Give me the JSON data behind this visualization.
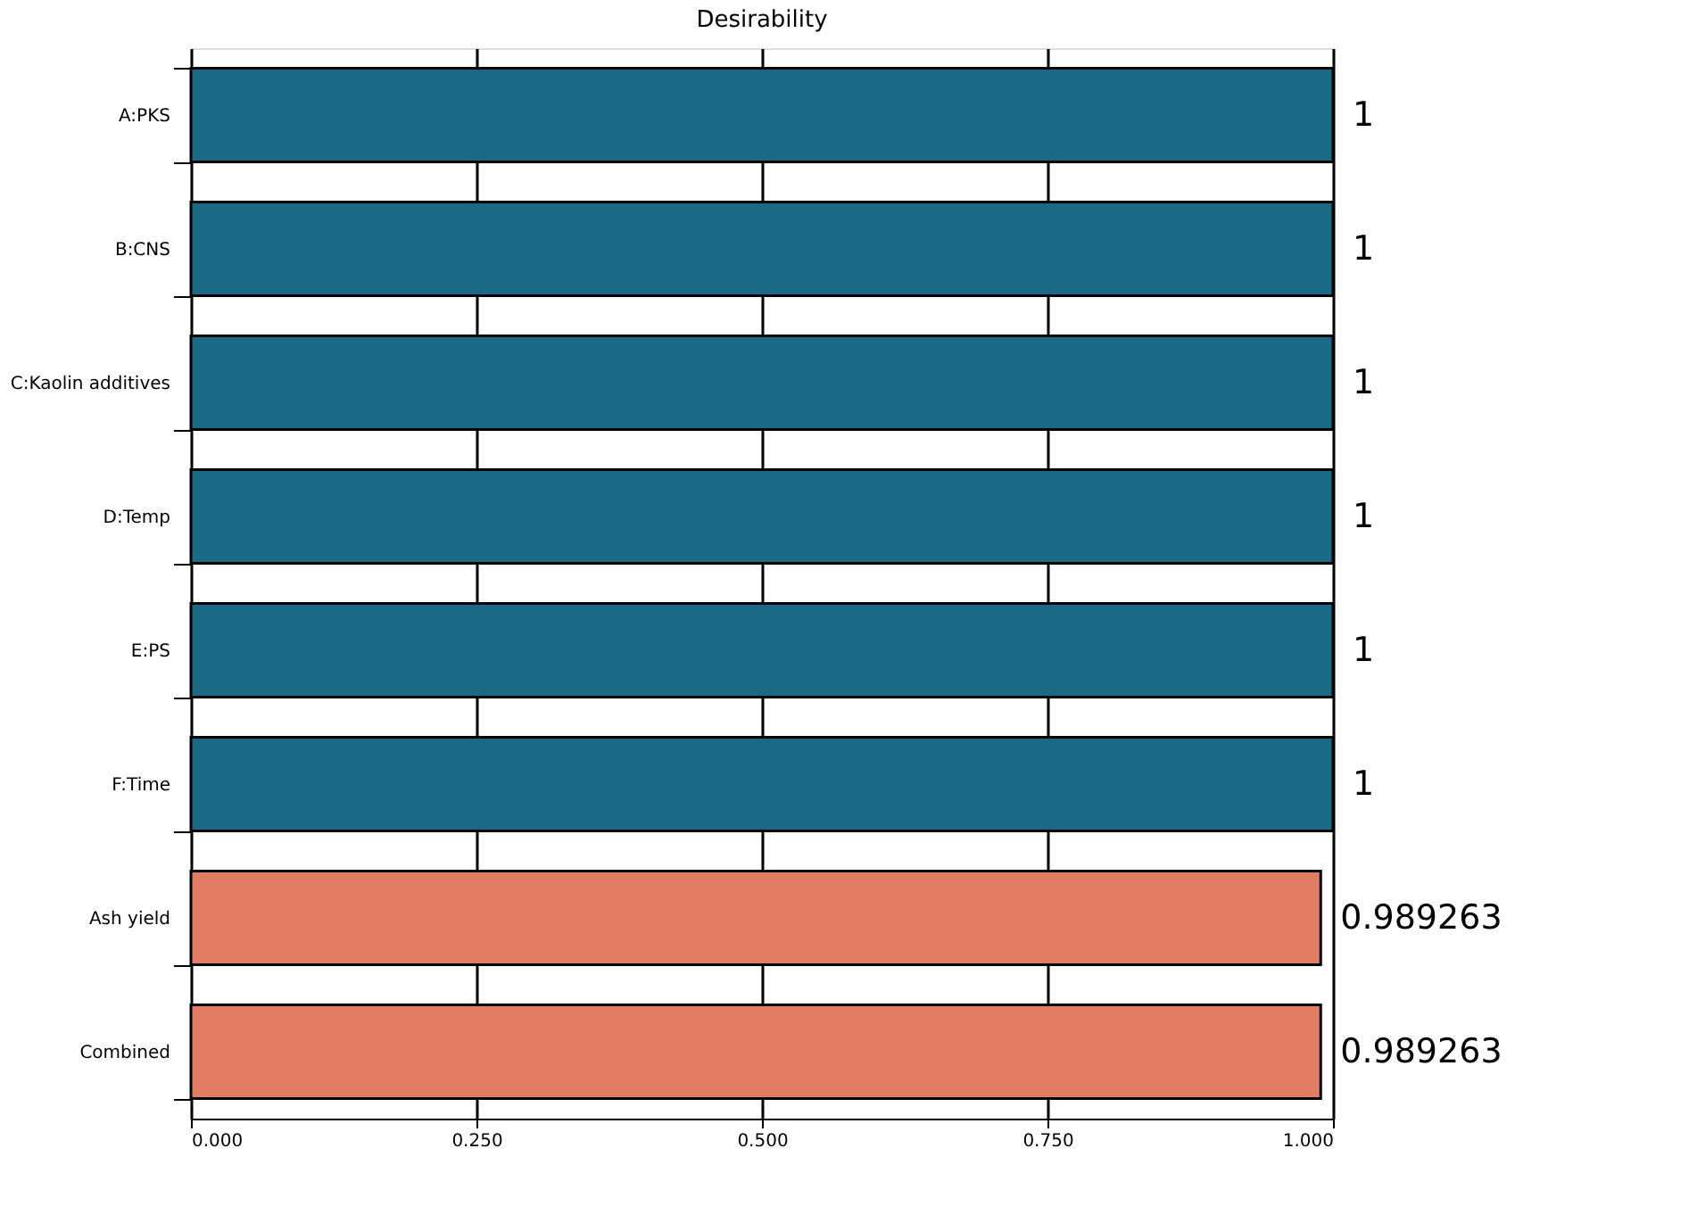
{
  "chart_data": {
    "type": "bar",
    "orientation": "horizontal",
    "title": "Desirability",
    "categories": [
      "A:PKS",
      "B:CNS",
      "C:Kaolin additives",
      "D:Temp",
      "E:PS",
      "F:Time",
      "Ash yield",
      "Combined"
    ],
    "values": [
      1,
      1,
      1,
      1,
      1,
      1,
      0.989263,
      0.989263
    ],
    "colors": [
      "#1b6a85",
      "#1b6a85",
      "#1b6a85",
      "#1b6a85",
      "#1b6a85",
      "#1b6a85",
      "#e27c62",
      "#e27c62"
    ],
    "xlim": [
      0,
      1
    ],
    "xticks": [
      {
        "value": 0,
        "label": "0.000"
      },
      {
        "value": 0.25,
        "label": "0.250"
      },
      {
        "value": 0.5,
        "label": "0.500"
      },
      {
        "value": 0.75,
        "label": "0.750"
      },
      {
        "value": 1,
        "label": "1.000"
      }
    ],
    "data_labels": true,
    "grid": "x"
  }
}
